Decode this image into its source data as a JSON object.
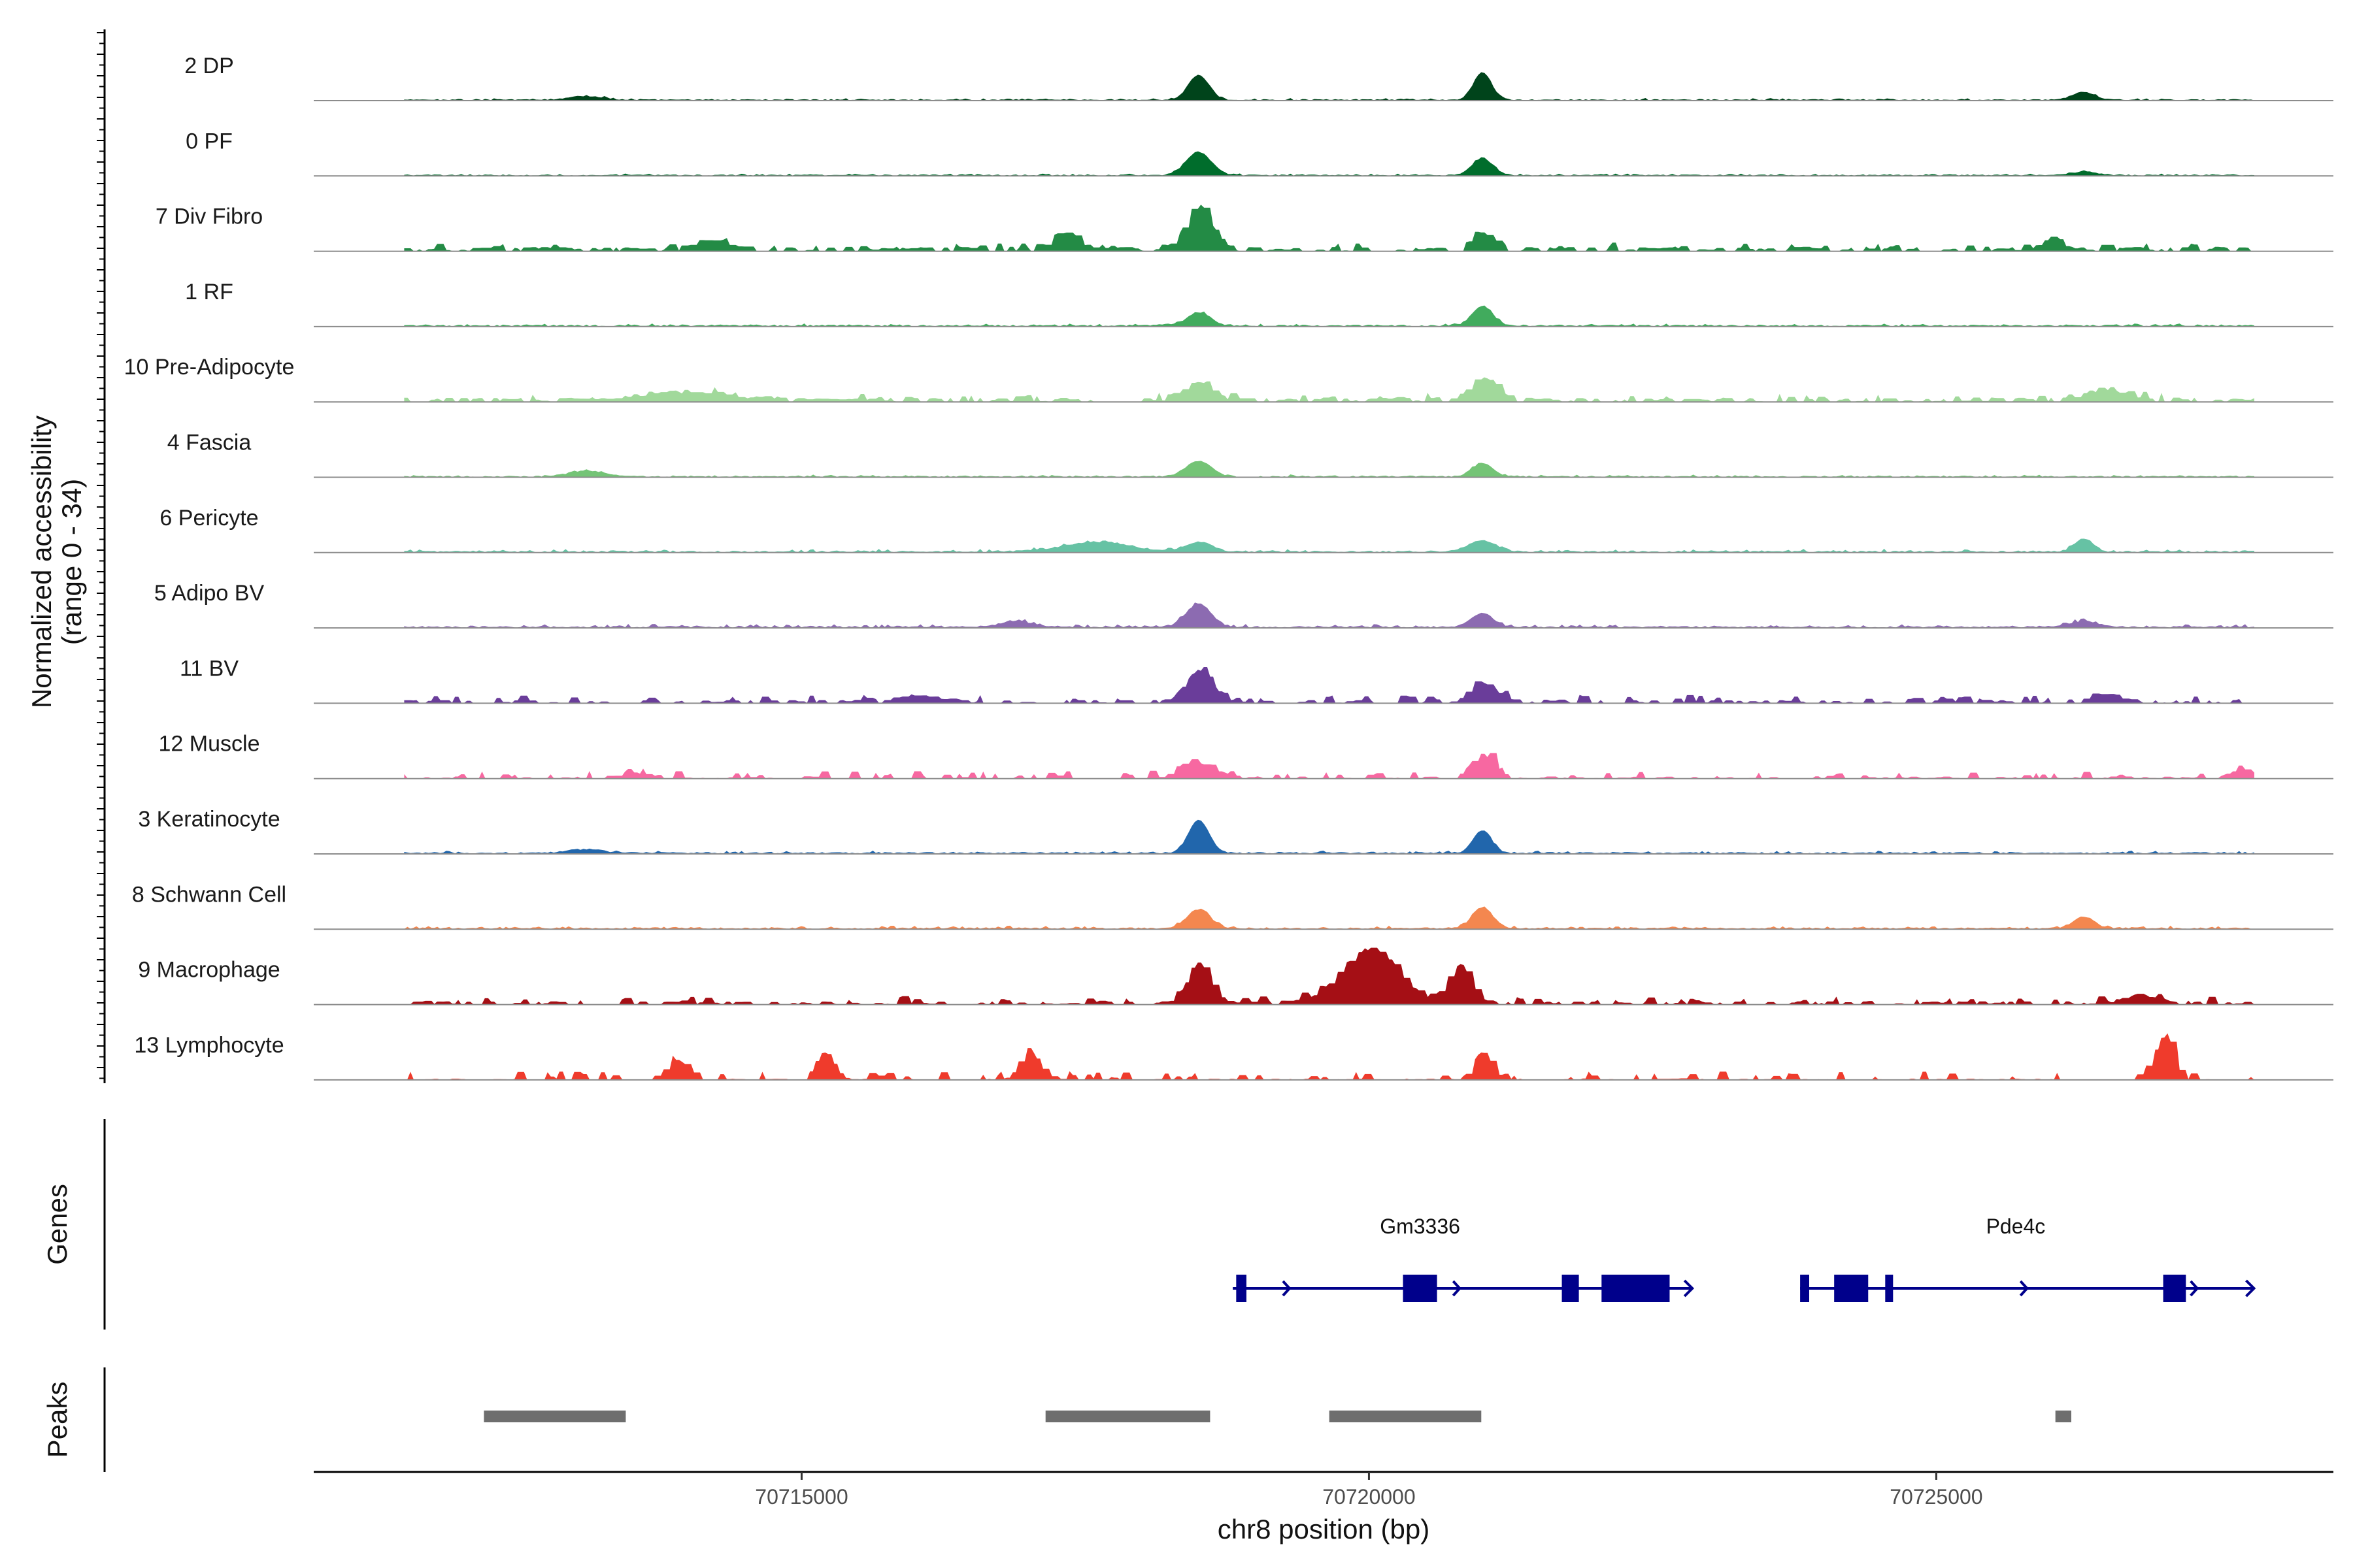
{
  "chart_data": {
    "type": "area",
    "title": "",
    "xlabel": "chr8 position (bp)",
    "ylabel": [
      "Normalized accessibility",
      "(range 0 - 34)"
    ],
    "ylim": [
      0,
      34
    ],
    "xlim": [
      70710700,
      70728500
    ],
    "data_range": [
      70711500,
      70727800
    ],
    "x_ticks": [
      {
        "value": 70715000,
        "label": "70715000"
      },
      {
        "value": 70720000,
        "label": "70720000"
      },
      {
        "value": 70725000,
        "label": "70725000"
      }
    ],
    "series": [
      {
        "name": "2 DP",
        "color": "#00441b",
        "style": "smooth",
        "base": 0.6,
        "noise": 0.6,
        "peaks": [
          [
            70718500,
            13,
            90
          ],
          [
            70721000,
            14,
            80
          ],
          [
            70726300,
            4,
            100
          ],
          [
            70713100,
            2,
            150
          ]
        ]
      },
      {
        "name": "0 PF",
        "color": "#006d2c",
        "style": "smooth",
        "base": 0.6,
        "noise": 0.5,
        "peaks": [
          [
            70718500,
            12,
            110
          ],
          [
            70721000,
            9,
            90
          ],
          [
            70726300,
            2,
            100
          ]
        ]
      },
      {
        "name": "7 Div Fibro",
        "color": "#238b45",
        "style": "blocky",
        "base": 2.0,
        "noise": 2.5,
        "peaks": [
          [
            70718500,
            24,
            110
          ],
          [
            70717300,
            9,
            100
          ],
          [
            70721000,
            8,
            100
          ],
          [
            70714200,
            5,
            150
          ],
          [
            70726000,
            6,
            80
          ]
        ]
      },
      {
        "name": "1 RF",
        "color": "#41ab5d",
        "style": "smooth",
        "base": 0.8,
        "noise": 0.8,
        "peaks": [
          [
            70718500,
            7,
            100
          ],
          [
            70721000,
            10,
            90
          ]
        ]
      },
      {
        "name": "10 Pre-Adipocyte",
        "color": "#a1d99b",
        "style": "blocky",
        "base": 2.0,
        "noise": 2.5,
        "peaks": [
          [
            70718500,
            9,
            120
          ],
          [
            70721000,
            12,
            120
          ],
          [
            70714000,
            4,
            400
          ],
          [
            70726500,
            5,
            200
          ]
        ]
      },
      {
        "name": "4 Fascia",
        "color": "#74c476",
        "style": "smooth",
        "base": 0.6,
        "noise": 0.7,
        "peaks": [
          [
            70718500,
            8,
            110
          ],
          [
            70721000,
            7,
            90
          ],
          [
            70713100,
            3,
            150
          ]
        ]
      },
      {
        "name": "6 Pericyte",
        "color": "#66c2a4",
        "style": "smooth",
        "base": 0.8,
        "noise": 1.0,
        "peaks": [
          [
            70718500,
            5,
            120
          ],
          [
            70717600,
            5,
            300
          ],
          [
            70721000,
            6,
            120
          ],
          [
            70726300,
            7,
            80
          ]
        ]
      },
      {
        "name": "5 Adipo BV",
        "color": "#8c6bb1",
        "style": "smooth",
        "base": 0.8,
        "noise": 1.2,
        "peaks": [
          [
            70718500,
            12,
            110
          ],
          [
            70721000,
            7,
            100
          ],
          [
            70716900,
            3,
            150
          ],
          [
            70726300,
            3,
            120
          ]
        ]
      },
      {
        "name": "11 BV",
        "color": "#6a3d9a",
        "style": "blocky",
        "base": 1.5,
        "noise": 3.0,
        "peaks": [
          [
            70718500,
            16,
            120
          ],
          [
            70721000,
            9,
            120
          ],
          [
            70716000,
            3,
            200
          ],
          [
            70726500,
            4,
            120
          ]
        ]
      },
      {
        "name": "12 Muscle",
        "color": "#f768a1",
        "style": "blocky",
        "base": 1.0,
        "noise": 3.0,
        "peaks": [
          [
            70718500,
            7,
            150
          ],
          [
            70721000,
            12,
            100
          ],
          [
            70713500,
            3,
            100
          ],
          [
            70727700,
            4,
            100
          ]
        ]
      },
      {
        "name": "3 Keratinocyte",
        "color": "#2166ac",
        "style": "smooth",
        "base": 0.8,
        "noise": 0.8,
        "peaks": [
          [
            70718500,
            17,
            90
          ],
          [
            70721000,
            12,
            80
          ],
          [
            70713100,
            2,
            150
          ]
        ]
      },
      {
        "name": "8 Schwann Cell",
        "color": "#f4874f",
        "style": "smooth",
        "base": 0.8,
        "noise": 1.0,
        "peaks": [
          [
            70718500,
            10,
            100
          ],
          [
            70721000,
            11,
            90
          ],
          [
            70726300,
            6,
            90
          ]
        ]
      },
      {
        "name": "9 Macrophage",
        "color": "#a50f15",
        "style": "blocky",
        "base": 1.5,
        "noise": 3.0,
        "peaks": [
          [
            70718500,
            20,
            100
          ],
          [
            70720000,
            28,
            250
          ],
          [
            70720800,
            20,
            100
          ],
          [
            70726800,
            4,
            150
          ]
        ]
      },
      {
        "name": "13 Lymphocyte",
        "color": "#ef3b2c",
        "style": "blocky",
        "base": 0.5,
        "noise": 4.0,
        "peaks": [
          [
            70717000,
            16,
            80
          ],
          [
            70715200,
            14,
            80
          ],
          [
            70721000,
            14,
            80
          ],
          [
            70727000,
            22,
            80
          ],
          [
            70713900,
            10,
            100
          ]
        ]
      }
    ],
    "genes_track_label": "Genes",
    "genes": [
      {
        "name": "Gm3336",
        "label_x": 70720450,
        "start": 70718800,
        "end": 70722850,
        "strand": "+",
        "exons": [
          [
            70718830,
            70718920
          ],
          [
            70720300,
            70720600
          ],
          [
            70721700,
            70721850
          ],
          [
            70722050,
            70722650
          ]
        ]
      },
      {
        "name": "Pde4c",
        "label_x": 70725700,
        "start": 70723800,
        "end": 70727800,
        "strand": "+",
        "exons": [
          [
            70723800,
            70723880
          ],
          [
            70724100,
            70724400
          ],
          [
            70724550,
            70724600
          ],
          [
            70727000,
            70727200
          ]
        ]
      }
    ],
    "peaks_track_label": "Peaks",
    "peaks": [
      [
        70712200,
        70713450
      ],
      [
        70717150,
        70718600
      ],
      [
        70719650,
        70720990
      ],
      [
        70726050,
        70726190
      ]
    ]
  }
}
